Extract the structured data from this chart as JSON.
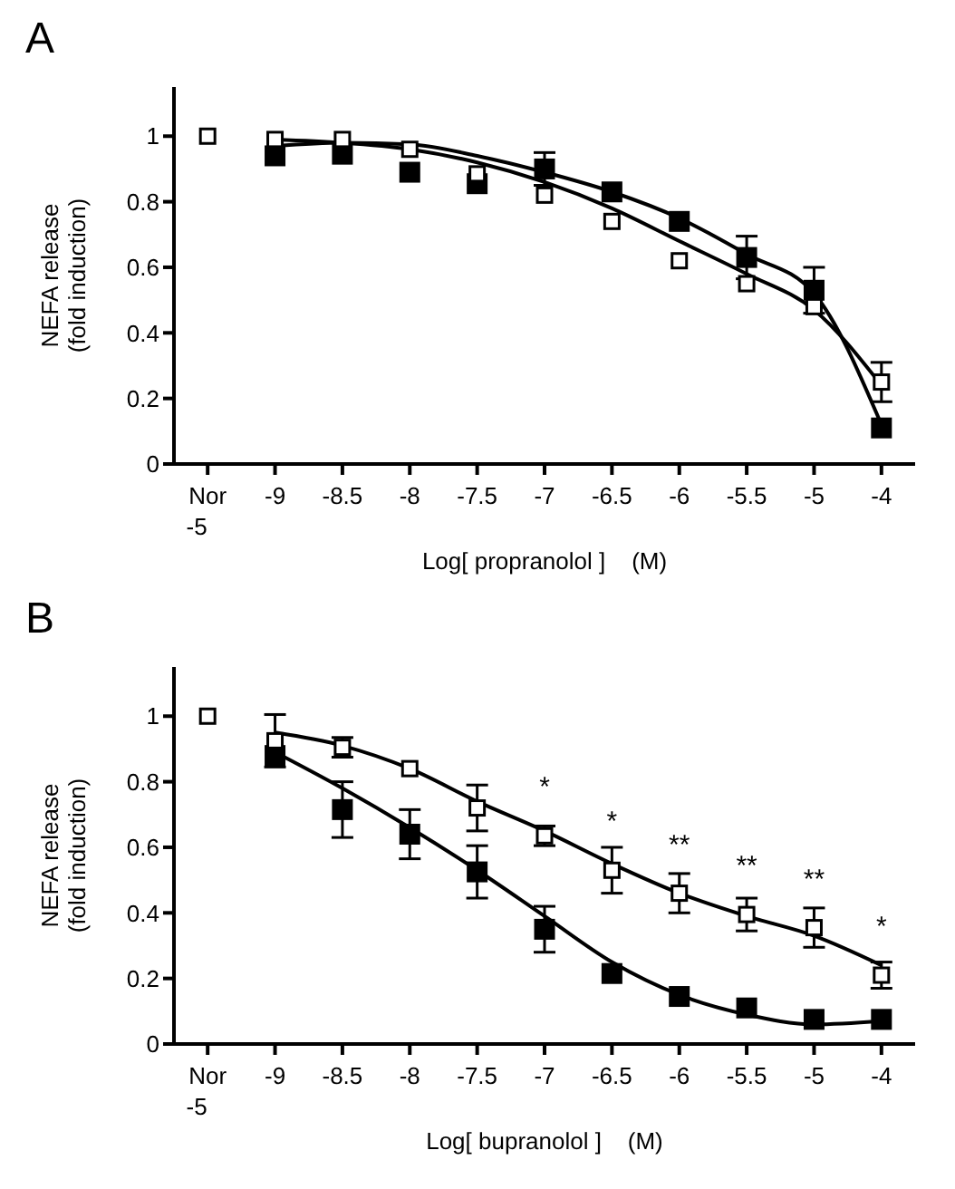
{
  "chart_data": [
    {
      "type": "scatter",
      "title": "A",
      "xlabel": "Log[ propranolol ]    (M)",
      "ylabel": "NEFA release\n(fold induction)",
      "categories": [
        "Nor\n-5",
        "-9",
        "-8.5",
        "-8",
        "-7.5",
        "-7",
        "-6.5",
        "-6",
        "-5.5",
        "-5",
        "-4"
      ],
      "ylim": [
        0,
        1.15
      ],
      "yticks": [
        0,
        0.2,
        0.4,
        0.6,
        0.8,
        1
      ],
      "marker": "square",
      "grid": false,
      "legend": false,
      "series": [
        {
          "type": "line",
          "color": "#000000",
          "marker": "none",
          "values": [
            null,
            0.97,
            0.98,
            0.975,
            0.94,
            0.89,
            0.83,
            0.75,
            0.64,
            0.52,
            0.12
          ]
        },
        {
          "type": "line",
          "color": "#000000",
          "marker": "none",
          "values": [
            null,
            0.99,
            0.98,
            0.96,
            0.92,
            0.86,
            0.78,
            0.68,
            0.58,
            0.47,
            0.24
          ]
        },
        {
          "color": "#000000",
          "values": [
            null,
            0.94,
            0.945,
            0.89,
            0.855,
            0.9,
            0.83,
            0.74,
            0.63,
            0.53,
            0.11
          ],
          "errors": [
            null,
            null,
            null,
            null,
            null,
            0.05,
            null,
            null,
            0.065,
            0.07,
            null
          ]
        },
        {
          "color": "#ffffff",
          "values": [
            1,
            0.99,
            0.99,
            0.96,
            0.885,
            0.82,
            0.74,
            0.62,
            0.55,
            0.48,
            0.25
          ],
          "errors": [
            null,
            null,
            null,
            null,
            null,
            null,
            null,
            null,
            null,
            null,
            0.06
          ]
        }
      ]
    },
    {
      "type": "scatter",
      "title": "B",
      "xlabel": "Log[ bupranolol ]    (M)",
      "ylabel": "NEFA release\n(fold induction)",
      "categories": [
        "Nor\n-5",
        "-9",
        "-8.5",
        "-8",
        "-7.5",
        "-7",
        "-6.5",
        "-6",
        "-5.5",
        "-5",
        "-4"
      ],
      "ylim": [
        0,
        1.15
      ],
      "yticks": [
        0,
        0.2,
        0.4,
        0.6,
        0.8,
        1
      ],
      "marker": "square",
      "grid": false,
      "legend": false,
      "series": [
        {
          "type": "line",
          "color": "#000000",
          "marker": "none",
          "values": [
            null,
            0.89,
            0.78,
            0.66,
            0.53,
            0.39,
            0.25,
            0.15,
            0.09,
            0.06,
            0.07
          ]
        },
        {
          "type": "line",
          "color": "#000000",
          "marker": "none",
          "values": [
            null,
            0.95,
            0.91,
            0.84,
            0.74,
            0.65,
            0.55,
            0.46,
            0.39,
            0.33,
            0.24
          ]
        },
        {
          "color": "#000000",
          "values": [
            null,
            0.88,
            0.715,
            0.64,
            0.525,
            0.35,
            0.215,
            0.145,
            0.11,
            0.075,
            0.075
          ],
          "errors": [
            null,
            null,
            0.085,
            0.075,
            0.08,
            0.07,
            null,
            null,
            null,
            null,
            null
          ]
        },
        {
          "color": "#ffffff",
          "values": [
            1,
            0.925,
            0.905,
            0.84,
            0.72,
            0.635,
            0.53,
            0.46,
            0.395,
            0.355,
            0.21
          ],
          "errors": [
            null,
            0.08,
            0.03,
            null,
            0.07,
            0.03,
            0.07,
            0.06,
            0.05,
            0.06,
            0.04
          ]
        }
      ],
      "annotations": [
        {
          "text": "*",
          "x": "-7",
          "y": 0.635
        },
        {
          "text": "*",
          "x": "-6.5",
          "y": 0.53
        },
        {
          "text": "**",
          "x": "-6",
          "y": 0.46
        },
        {
          "text": "**",
          "x": "-5.5",
          "y": 0.395
        },
        {
          "text": "**",
          "x": "-5",
          "y": 0.355
        },
        {
          "text": "*",
          "x": "-4",
          "y": 0.21
        }
      ]
    }
  ]
}
